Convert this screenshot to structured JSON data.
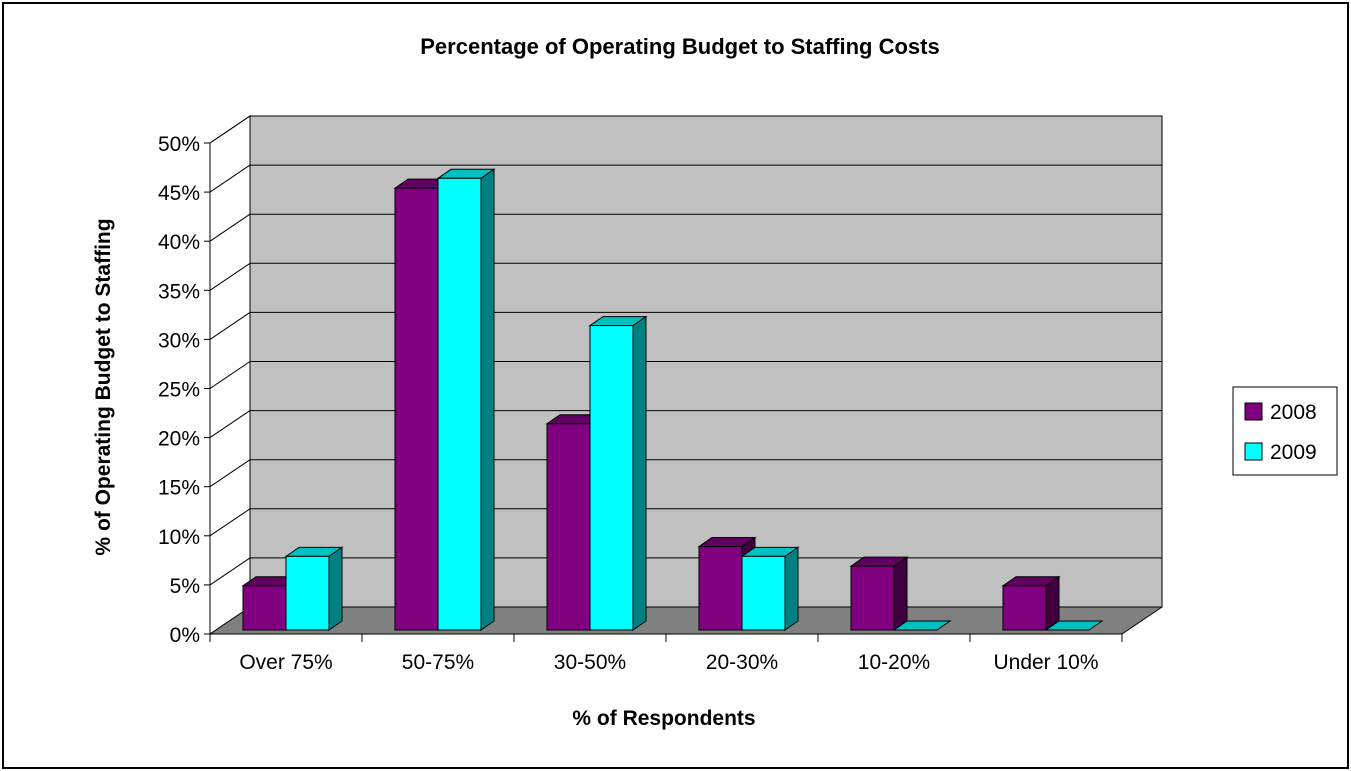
{
  "chart_data": {
    "type": "bar",
    "title": "Percentage of Operating Budget to Staffing Costs",
    "xlabel": "% of Respondents",
    "ylabel": "% of Operating Budget to Staffing",
    "categories": [
      "Over 75%",
      "50-75%",
      "30-50%",
      "20-30%",
      "10-20%",
      "Under 10%"
    ],
    "series": [
      {
        "name": "2008",
        "values": [
          4.5,
          45,
          21,
          8.5,
          6.5,
          4.5
        ],
        "color": "#800080"
      },
      {
        "name": "2009",
        "values": [
          7.5,
          46,
          31,
          7.5,
          0,
          0
        ],
        "color": "#00ffff"
      }
    ],
    "y_ticks": [
      "0%",
      "5%",
      "10%",
      "15%",
      "20%",
      "25%",
      "30%",
      "35%",
      "40%",
      "45%",
      "50%"
    ],
    "ylim": [
      0,
      50
    ],
    "grid": true,
    "legend_position": "right",
    "style": "3d-clustered-column"
  }
}
